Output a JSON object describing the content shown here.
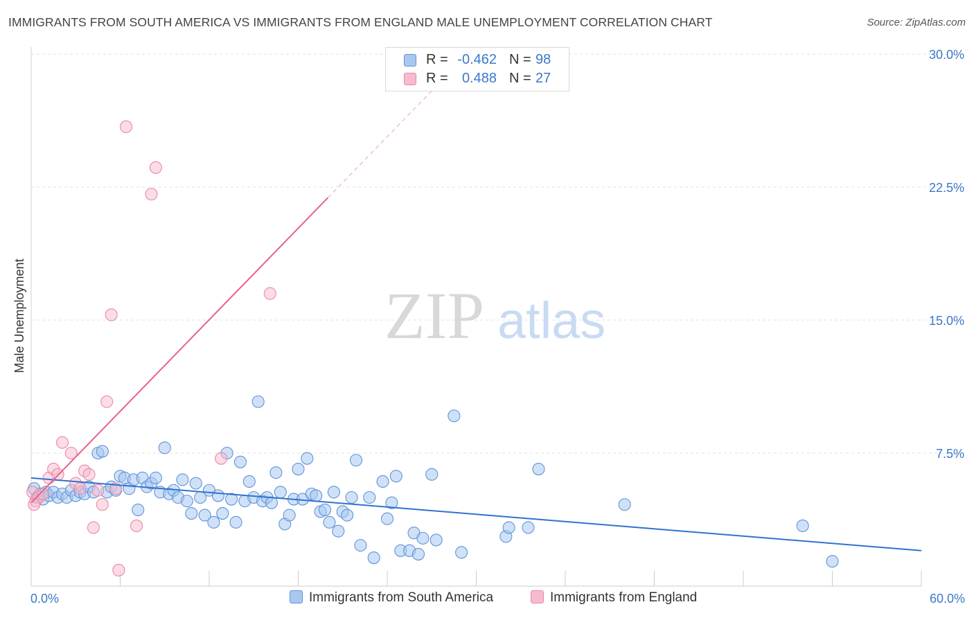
{
  "title": "IMMIGRANTS FROM SOUTH AMERICA VS IMMIGRANTS FROM ENGLAND MALE UNEMPLOYMENT CORRELATION CHART",
  "source": "Source: ZipAtlas.com",
  "watermark": {
    "zip": "ZIP",
    "atlas": "atlas"
  },
  "colors": {
    "blue_fill": "#a9c8f0",
    "blue_stroke": "#5e93d8",
    "blue_line": "#2f72d0",
    "pink_fill": "#f6bccd",
    "pink_stroke": "#ec86a6",
    "pink_line": "#e8608e",
    "axis_label": "#3a78c9",
    "grid": "#e2e2e2"
  },
  "legend": {
    "rows": [
      {
        "r_label": "R =",
        "r_value": "-0.462",
        "n_label": "N =",
        "n_value": "98"
      },
      {
        "r_label": "R =",
        "r_value": "0.488",
        "n_label": "N =",
        "n_value": "27"
      }
    ]
  },
  "bottom_legend": {
    "series1": "Immigrants from South America",
    "series2": "Immigrants from England"
  },
  "chart_data": {
    "type": "scatter",
    "title": "IMMIGRANTS FROM SOUTH AMERICA VS IMMIGRANTS FROM ENGLAND MALE UNEMPLOYMENT CORRELATION CHART",
    "xlabel": "",
    "ylabel": "Male Unemployment",
    "xlim": [
      0,
      60
    ],
    "ylim": [
      0,
      30
    ],
    "x_tick_labels": [
      "0.0%",
      "60.0%"
    ],
    "y_ticks": [
      7.5,
      15.0,
      22.5,
      30.0
    ],
    "y_tick_labels": [
      "7.5%",
      "15.0%",
      "22.5%",
      "30.0%"
    ],
    "grid": true,
    "series": [
      {
        "name": "Immigrants from South America",
        "r": -0.462,
        "n": 98,
        "trend": {
          "x": [
            0,
            60
          ],
          "y": [
            6.1,
            2.0
          ]
        },
        "points": [
          [
            0.2,
            5.5
          ],
          [
            0.4,
            5.0
          ],
          [
            0.6,
            5.2
          ],
          [
            0.8,
            4.9
          ],
          [
            1.0,
            5.3
          ],
          [
            1.2,
            5.1
          ],
          [
            1.5,
            5.3
          ],
          [
            1.8,
            5.0
          ],
          [
            2.1,
            5.2
          ],
          [
            2.4,
            5.0
          ],
          [
            2.7,
            5.4
          ],
          [
            3.0,
            5.1
          ],
          [
            3.3,
            5.3
          ],
          [
            3.6,
            5.2
          ],
          [
            3.9,
            5.6
          ],
          [
            4.2,
            5.3
          ],
          [
            4.5,
            7.5
          ],
          [
            4.8,
            7.6
          ],
          [
            5.1,
            5.3
          ],
          [
            5.4,
            5.6
          ],
          [
            5.7,
            5.4
          ],
          [
            6.0,
            6.2
          ],
          [
            6.3,
            6.1
          ],
          [
            6.6,
            5.5
          ],
          [
            6.9,
            6.0
          ],
          [
            7.2,
            4.3
          ],
          [
            7.5,
            6.1
          ],
          [
            7.8,
            5.6
          ],
          [
            8.1,
            5.8
          ],
          [
            8.4,
            6.1
          ],
          [
            8.7,
            5.3
          ],
          [
            9.0,
            7.8
          ],
          [
            9.3,
            5.2
          ],
          [
            9.6,
            5.4
          ],
          [
            9.9,
            5.0
          ],
          [
            10.2,
            6.0
          ],
          [
            10.5,
            4.8
          ],
          [
            10.8,
            4.1
          ],
          [
            11.1,
            5.8
          ],
          [
            11.4,
            5.0
          ],
          [
            11.7,
            4.0
          ],
          [
            12.0,
            5.4
          ],
          [
            12.3,
            3.6
          ],
          [
            12.6,
            5.1
          ],
          [
            12.9,
            4.1
          ],
          [
            13.2,
            7.5
          ],
          [
            13.5,
            4.9
          ],
          [
            13.8,
            3.6
          ],
          [
            14.1,
            7.0
          ],
          [
            14.4,
            4.8
          ],
          [
            14.7,
            5.9
          ],
          [
            15.0,
            5.0
          ],
          [
            15.3,
            10.4
          ],
          [
            15.6,
            4.8
          ],
          [
            15.9,
            5.0
          ],
          [
            16.2,
            4.7
          ],
          [
            16.5,
            6.4
          ],
          [
            16.8,
            5.3
          ],
          [
            17.1,
            3.5
          ],
          [
            17.4,
            4.0
          ],
          [
            17.7,
            4.9
          ],
          [
            18.0,
            6.6
          ],
          [
            18.3,
            4.9
          ],
          [
            18.6,
            7.2
          ],
          [
            18.9,
            5.2
          ],
          [
            19.2,
            5.1
          ],
          [
            19.5,
            4.2
          ],
          [
            19.8,
            4.3
          ],
          [
            20.1,
            3.6
          ],
          [
            20.4,
            5.3
          ],
          [
            20.7,
            3.1
          ],
          [
            21.0,
            4.2
          ],
          [
            21.3,
            4.0
          ],
          [
            21.6,
            5.0
          ],
          [
            21.9,
            7.1
          ],
          [
            22.2,
            2.3
          ],
          [
            22.8,
            5.0
          ],
          [
            23.1,
            1.6
          ],
          [
            23.7,
            5.9
          ],
          [
            24.0,
            3.8
          ],
          [
            24.3,
            4.7
          ],
          [
            24.6,
            6.2
          ],
          [
            24.9,
            2.0
          ],
          [
            25.5,
            2.0
          ],
          [
            25.8,
            3.0
          ],
          [
            26.1,
            1.8
          ],
          [
            26.4,
            2.7
          ],
          [
            27.0,
            6.3
          ],
          [
            27.3,
            2.6
          ],
          [
            28.5,
            9.6
          ],
          [
            29.0,
            1.9
          ],
          [
            32.0,
            2.8
          ],
          [
            32.2,
            3.3
          ],
          [
            33.5,
            3.3
          ],
          [
            34.2,
            6.6
          ],
          [
            40.0,
            4.6
          ],
          [
            52.0,
            3.4
          ],
          [
            54.0,
            1.4
          ]
        ]
      },
      {
        "name": "Immigrants from England",
        "r": 0.488,
        "n": 27,
        "trend": {
          "x": [
            0,
            20
          ],
          "y": [
            4.7,
            21.9
          ]
        },
        "trend_extension": {
          "x": [
            20,
            30
          ],
          "y": [
            21.9,
            30.5
          ]
        },
        "points": [
          [
            0.1,
            5.3
          ],
          [
            0.3,
            4.8
          ],
          [
            0.5,
            5.0
          ],
          [
            0.8,
            5.2
          ],
          [
            1.2,
            6.1
          ],
          [
            1.5,
            6.6
          ],
          [
            1.8,
            6.3
          ],
          [
            2.1,
            8.1
          ],
          [
            2.7,
            7.5
          ],
          [
            3.0,
            5.8
          ],
          [
            3.3,
            5.5
          ],
          [
            3.6,
            6.5
          ],
          [
            3.9,
            6.3
          ],
          [
            4.2,
            3.3
          ],
          [
            4.5,
            5.4
          ],
          [
            4.8,
            4.6
          ],
          [
            5.1,
            10.4
          ],
          [
            5.4,
            15.3
          ],
          [
            5.7,
            5.5
          ],
          [
            5.9,
            0.9
          ],
          [
            6.4,
            25.9
          ],
          [
            7.1,
            3.4
          ],
          [
            8.1,
            22.1
          ],
          [
            8.4,
            23.6
          ],
          [
            12.8,
            7.2
          ],
          [
            16.1,
            16.5
          ],
          [
            0.2,
            4.6
          ]
        ]
      }
    ]
  }
}
